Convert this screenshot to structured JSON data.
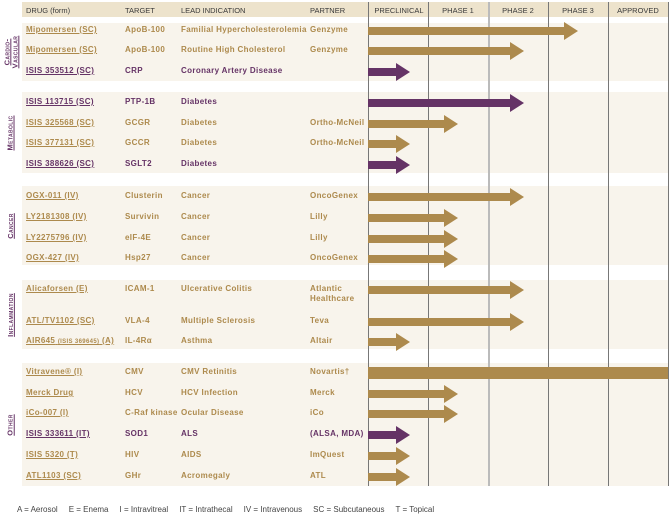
{
  "header": {
    "drug": "DRUG (form)",
    "target": "TARGET",
    "indication": "LEAD INDICATION",
    "partner": "PARTNER"
  },
  "phases": [
    "PRECLINICAL",
    "PHASE 1",
    "PHASE 2",
    "PHASE 3",
    "APPROVED"
  ],
  "colors": {
    "partnered": "#ad8a4d",
    "isis_owned": "#653366",
    "band": "#f8f4ec",
    "header": "#ede3cc"
  },
  "chart_data": {
    "type": "table",
    "progress_units": "phase columns completed (0 = start of Preclinical, 5 = Approved)",
    "groups": [
      {
        "category": "Cardio-Vascular",
        "rows": [
          {
            "drug": "Mipomersen (SC)",
            "target": "ApoB-100",
            "indication": "Familial Hypercholesterolemia",
            "partner": "Genzyme",
            "color": "partnered",
            "progress": 3.5
          },
          {
            "drug": "Mipomersen (SC)",
            "target": "ApoB-100",
            "indication": "Routine High Cholesterol",
            "partner": "Genzyme",
            "color": "partnered",
            "progress": 2.6
          },
          {
            "drug": "ISIS 353512 (SC)",
            "target": "CRP",
            "indication": "Coronary Artery Disease",
            "partner": "",
            "color": "isis_owned",
            "progress": 0.7
          }
        ]
      },
      {
        "category": "Metabolic",
        "rows": [
          {
            "drug": "ISIS 113715 (SC)",
            "target": "PTP-1B",
            "indication": "Diabetes",
            "partner": "",
            "color": "isis_owned",
            "progress": 2.6
          },
          {
            "drug": "ISIS 325568 (SC)",
            "target": "GCGR",
            "indication": "Diabetes",
            "partner": "Ortho-McNeil",
            "color": "partnered",
            "progress": 1.5
          },
          {
            "drug": "ISIS 377131 (SC)",
            "target": "GCCR",
            "indication": "Diabetes",
            "partner": "Ortho-McNeil",
            "color": "partnered",
            "progress": 0.7
          },
          {
            "drug": "ISIS 388626 (SC)",
            "target": "SGLT2",
            "indication": "Diabetes",
            "partner": "",
            "color": "isis_owned",
            "progress": 0.7
          }
        ]
      },
      {
        "category": "Cancer",
        "rows": [
          {
            "drug": "OGX-011 (IV)",
            "target": "Clusterin",
            "indication": "Cancer",
            "partner": "OncoGenex",
            "color": "partnered",
            "progress": 2.6
          },
          {
            "drug": "LY2181308 (IV)",
            "target": "Survivin",
            "indication": "Cancer",
            "partner": "Lilly",
            "color": "partnered",
            "progress": 1.5
          },
          {
            "drug": "LY2275796 (IV)",
            "target": "eIF-4E",
            "indication": "Cancer",
            "partner": "Lilly",
            "color": "partnered",
            "progress": 1.5
          },
          {
            "drug": "OGX-427 (IV)",
            "target": "Hsp27",
            "indication": "Cancer",
            "partner": "OncoGenex",
            "color": "partnered",
            "progress": 1.5
          }
        ]
      },
      {
        "category": "Inflammation",
        "rows": [
          {
            "drug": "Alicaforsen (E)",
            "target": "ICAM-1",
            "indication": "Ulcerative Colitis",
            "partner": "Atlantic Healthcare",
            "color": "partnered",
            "progress": 2.6
          },
          {
            "drug": "ATL/TV1102 (SC)",
            "target": "VLA-4",
            "indication": "Multiple Sclerosis",
            "partner": "Teva",
            "color": "partnered",
            "progress": 2.6
          },
          {
            "drug": "AIR645",
            "drug_note": "(ISIS 369645)",
            "drug_suffix": "(A)",
            "target": "IL-4Rα",
            "indication": "Asthma",
            "partner": "Altair",
            "color": "partnered",
            "progress": 0.7
          }
        ]
      },
      {
        "category": "Other",
        "rows": [
          {
            "drug": "Vitravene® (I)",
            "target": "CMV",
            "indication": "CMV Retinitis",
            "partner": "Novartis†",
            "color": "partnered",
            "progress": 5
          },
          {
            "drug": "Merck Drug",
            "target": "HCV",
            "indication": "HCV Infection",
            "partner": "Merck",
            "color": "partnered",
            "progress": 1.5
          },
          {
            "drug": "iCo-007 (I)",
            "target": "C-Raf kinase",
            "indication": "Ocular Disease",
            "partner": "iCo",
            "color": "partnered",
            "progress": 1.5
          },
          {
            "drug": "ISIS 333611 (IT)",
            "target": "SOD1",
            "indication": "ALS",
            "partner": "(ALSA, MDA)",
            "color": "isis_owned",
            "progress": 0.7
          },
          {
            "drug": "ISIS 5320 (T)",
            "target": "HIV",
            "indication": "AIDS",
            "partner": "ImQuest",
            "color": "partnered",
            "progress": 0.7
          },
          {
            "drug": "ATL1103 (SC)",
            "target": "GHr",
            "indication": "Acromegaly",
            "partner": "ATL",
            "color": "partnered",
            "progress": 0.7
          }
        ]
      }
    ]
  },
  "legend": [
    "A = Aerosol",
    "E = Enema",
    "I = Intravitreal",
    "IT = Intrathecal",
    "IV = Intravenous",
    "SC = Subcutaneous",
    "T = Topical"
  ]
}
